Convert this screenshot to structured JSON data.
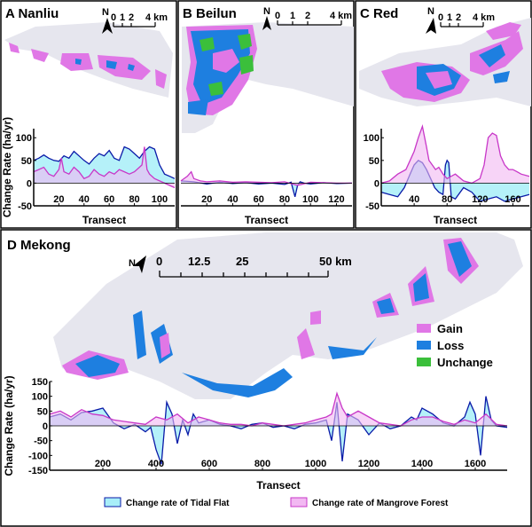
{
  "panels": {
    "A": {
      "title": "A Nanliu",
      "scalebar": {
        "ticks": [
          "0",
          "1",
          "2",
          "4 km"
        ]
      },
      "north": "N",
      "chart_data": {
        "type": "area",
        "xlabel": "Transect",
        "ylabel": "Change Rate (ha/yr)",
        "xlim": [
          0,
          112
        ],
        "ylim": [
          -50,
          120
        ],
        "xticks": [
          20,
          40,
          60,
          80,
          100
        ],
        "yticks": [
          -50,
          0,
          50,
          100
        ],
        "series": [
          {
            "key": "tidal",
            "x": [
              0,
              4,
              8,
              12,
              16,
              20,
              24,
              28,
              32,
              36,
              40,
              44,
              48,
              52,
              56,
              60,
              64,
              68,
              72,
              76,
              80,
              84,
              88,
              92,
              96,
              100,
              104,
              108,
              112
            ],
            "values": [
              50,
              55,
              62,
              55,
              50,
              48,
              60,
              55,
              70,
              60,
              50,
              42,
              55,
              65,
              60,
              72,
              55,
              50,
              80,
              75,
              65,
              55,
              70,
              80,
              75,
              40,
              20,
              15,
              10
            ]
          },
          {
            "key": "mangrove",
            "x": [
              0,
              4,
              8,
              12,
              16,
              20,
              22,
              24,
              28,
              32,
              36,
              40,
              44,
              48,
              52,
              56,
              60,
              64,
              68,
              72,
              76,
              80,
              84,
              86,
              88,
              90,
              92,
              96,
              100,
              104,
              108,
              112
            ],
            "values": [
              25,
              30,
              35,
              20,
              15,
              30,
              55,
              25,
              20,
              35,
              25,
              10,
              15,
              30,
              20,
              15,
              25,
              20,
              30,
              25,
              20,
              25,
              35,
              40,
              80,
              30,
              20,
              10,
              5,
              0,
              -5,
              -10
            ]
          }
        ]
      }
    },
    "B": {
      "title": "B Beilun",
      "scalebar": {
        "ticks": [
          "0",
          "1",
          "2",
          "4 km"
        ]
      },
      "north": "N",
      "chart_data": {
        "type": "area",
        "xlabel": "Transect",
        "ylabel": "",
        "xlim": [
          0,
          132
        ],
        "ylim": [
          -50,
          120
        ],
        "xticks": [
          20,
          40,
          60,
          80,
          100,
          120
        ],
        "yticks": [],
        "series": [
          {
            "key": "tidal",
            "x": [
              0,
              10,
              20,
              30,
              40,
              50,
              60,
              70,
              80,
              85,
              88,
              90,
              92,
              95,
              100,
              110,
              120,
              132
            ],
            "values": [
              5,
              3,
              -2,
              2,
              -1,
              1,
              -2,
              0,
              -3,
              2,
              -30,
              -5,
              3,
              0,
              -2,
              1,
              -1,
              0
            ]
          },
          {
            "key": "mangrove",
            "x": [
              0,
              5,
              8,
              10,
              15,
              20,
              30,
              40,
              50,
              60,
              70,
              80,
              90,
              100,
              110,
              120,
              132
            ],
            "values": [
              5,
              15,
              25,
              10,
              5,
              3,
              5,
              2,
              3,
              2,
              1,
              3,
              -5,
              2,
              1,
              0,
              0
            ]
          }
        ]
      }
    },
    "C": {
      "title": "C Red",
      "scalebar": {
        "ticks": [
          "0",
          "1",
          "2",
          "4 km"
        ]
      },
      "north": "N",
      "chart_data": {
        "type": "area",
        "xlabel": "Transect",
        "ylabel": "",
        "xlim": [
          0,
          180
        ],
        "ylim": [
          -50,
          120
        ],
        "xticks": [
          40,
          80,
          120,
          160
        ],
        "yticks": [
          -50,
          0,
          50,
          100
        ],
        "series": [
          {
            "key": "tidal",
            "x": [
              0,
              10,
              20,
              28,
              35,
              40,
              45,
              50,
              55,
              60,
              65,
              70,
              75,
              78,
              80,
              82,
              85,
              90,
              100,
              110,
              120,
              130,
              140,
              150,
              160,
              170,
              180
            ],
            "values": [
              -20,
              -25,
              -30,
              -10,
              20,
              40,
              50,
              45,
              30,
              10,
              -10,
              -20,
              -25,
              40,
              50,
              45,
              -30,
              -35,
              -10,
              -20,
              -40,
              -35,
              -30,
              -40,
              -35,
              -30,
              -25
            ]
          },
          {
            "key": "mangrove",
            "x": [
              0,
              10,
              20,
              30,
              35,
              40,
              45,
              50,
              55,
              58,
              62,
              66,
              70,
              75,
              80,
              85,
              90,
              100,
              110,
              120,
              125,
              130,
              135,
              140,
              145,
              150,
              155,
              160,
              165,
              170,
              180
            ],
            "values": [
              0,
              5,
              20,
              30,
              50,
              70,
              100,
              125,
              80,
              50,
              40,
              30,
              35,
              20,
              10,
              15,
              20,
              5,
              0,
              10,
              40,
              100,
              110,
              105,
              60,
              40,
              30,
              30,
              25,
              20,
              15
            ]
          }
        ]
      }
    },
    "D": {
      "title": "D Mekong",
      "scalebar": {
        "ticks": [
          "0",
          "12.5",
          "25",
          "50 km"
        ]
      },
      "north": "N",
      "map_legend": [
        {
          "label": "Gain",
          "color": "#e077e6"
        },
        {
          "label": "Loss",
          "color": "#1e7fe0"
        },
        {
          "label": "Unchange",
          "color": "#3bbf3b"
        }
      ],
      "chart_data": {
        "type": "area",
        "xlabel": "Transect",
        "ylabel": "Change Rate (ha/yr)",
        "xlim": [
          0,
          1720
        ],
        "ylim": [
          -150,
          150
        ],
        "xticks": [
          200,
          400,
          600,
          800,
          1000,
          1200,
          1400,
          1600
        ],
        "yticks": [
          -150,
          -100,
          -50,
          0,
          50,
          100,
          150
        ],
        "series": [
          {
            "key": "tidal",
            "x": [
              0,
              40,
              80,
              120,
              160,
              200,
              240,
              280,
              320,
              360,
              380,
              400,
              420,
              440,
              460,
              480,
              500,
              520,
              540,
              560,
              600,
              640,
              680,
              720,
              760,
              800,
              840,
              880,
              920,
              960,
              1000,
              1040,
              1060,
              1080,
              1100,
              1120,
              1160,
              1200,
              1240,
              1280,
              1320,
              1360,
              1380,
              1400,
              1440,
              1480,
              1520,
              1560,
              1580,
              1600,
              1620,
              1640,
              1660,
              1680,
              1720
            ],
            "values": [
              30,
              40,
              20,
              45,
              50,
              60,
              10,
              -10,
              5,
              -20,
              -5,
              -80,
              -130,
              80,
              40,
              -60,
              20,
              -30,
              40,
              10,
              20,
              5,
              0,
              -10,
              5,
              10,
              -5,
              0,
              -10,
              5,
              10,
              20,
              -50,
              80,
              -120,
              40,
              20,
              -30,
              10,
              -10,
              0,
              30,
              20,
              60,
              40,
              10,
              0,
              30,
              80,
              40,
              -100,
              100,
              20,
              0,
              -5
            ]
          },
          {
            "key": "mangrove",
            "x": [
              0,
              40,
              80,
              120,
              160,
              200,
              240,
              280,
              320,
              360,
              400,
              440,
              480,
              520,
              560,
              600,
              640,
              680,
              720,
              760,
              800,
              840,
              880,
              920,
              960,
              1000,
              1040,
              1060,
              1080,
              1100,
              1120,
              1160,
              1200,
              1240,
              1280,
              1320,
              1360,
              1400,
              1440,
              1480,
              1520,
              1560,
              1600,
              1640,
              1680,
              1720
            ],
            "values": [
              40,
              50,
              30,
              55,
              40,
              35,
              20,
              15,
              10,
              5,
              30,
              20,
              40,
              10,
              30,
              20,
              10,
              5,
              5,
              0,
              10,
              5,
              0,
              5,
              10,
              20,
              30,
              40,
              110,
              60,
              30,
              50,
              30,
              10,
              5,
              0,
              20,
              30,
              30,
              15,
              5,
              20,
              10,
              40,
              5,
              0
            ]
          }
        ]
      },
      "chart_legend": [
        {
          "key": "tidal",
          "label": "Change rate  of Tidal Flat"
        },
        {
          "key": "mangrove",
          "label": "Change rate of Mangrove Forest"
        }
      ]
    }
  },
  "colors": {
    "tidal_line": "#0a1aa8",
    "tidal_fill": "#a8eef8",
    "mangrove_line": "#c837c8",
    "mangrove_fill": "#f2b8f2",
    "land": "#e6e6ee",
    "gain": "#e077e6",
    "loss": "#1e7fe0",
    "unchange": "#3bbf3b"
  }
}
